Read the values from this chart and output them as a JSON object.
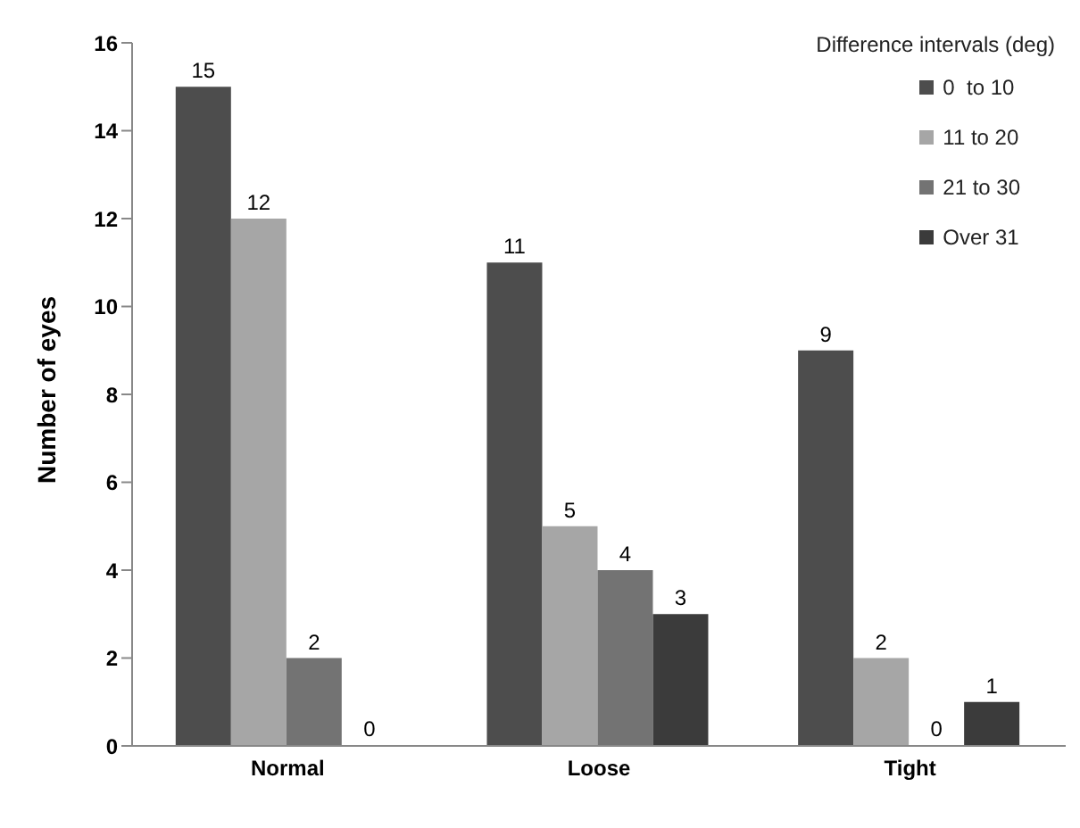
{
  "chart_data": {
    "type": "bar",
    "ylabel": "Number of eyes",
    "legend_title": "Difference intervals (deg)",
    "categories": [
      "Normal",
      "Loose",
      "Tight"
    ],
    "series": [
      {
        "name": "0  to 10",
        "color": "#4d4d4d",
        "values": [
          15,
          11,
          9
        ]
      },
      {
        "name": "11 to 20",
        "color": "#a6a6a6",
        "values": [
          12,
          5,
          2
        ]
      },
      {
        "name": "21 to 30",
        "color": "#737373",
        "values": [
          2,
          4,
          0
        ]
      },
      {
        "name": "Over 31",
        "color": "#3b3b3b",
        "values": [
          0,
          3,
          1
        ]
      }
    ],
    "ylim": [
      0,
      16
    ],
    "yticks": [
      0,
      2,
      4,
      6,
      8,
      10,
      12,
      14,
      16
    ],
    "grid": false,
    "legend": "top right",
    "data_labels": true
  }
}
